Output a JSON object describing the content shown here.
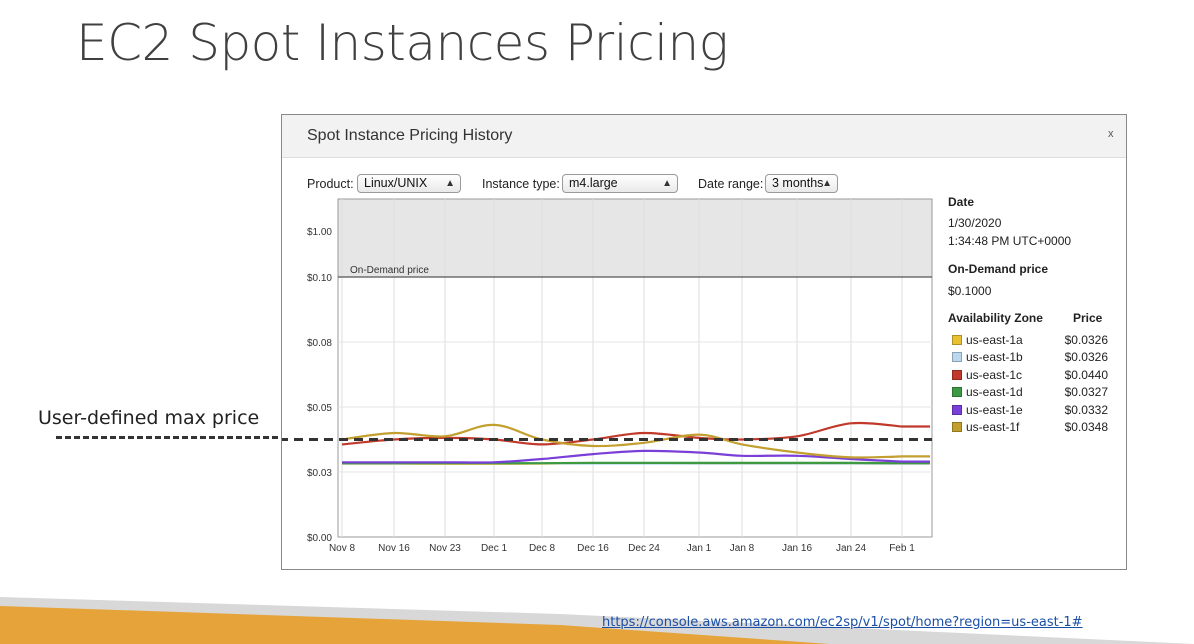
{
  "slide": {
    "title": "EC2 Spot Instances Pricing",
    "annotation": "User-defined max price",
    "link": "https://console.aws.amazon.com/ec2sp/v1/spot/home?region=us-east-1#"
  },
  "modal": {
    "title": "Spot Instance Pricing History",
    "close": "x",
    "product_label": "Product:",
    "product_value": "Linux/UNIX",
    "instance_label": "Instance type:",
    "instance_value": "m4.large",
    "range_label": "Date range:",
    "range_value": "3 months"
  },
  "info": {
    "date_heading": "Date",
    "date_value": "1/30/2020",
    "time_value": "1:34:48 PM UTC+0000",
    "ondemand_heading": "On-Demand price",
    "ondemand_value": "$0.1000",
    "az_heading": "Availability Zone",
    "price_heading": "Price"
  },
  "colors": {
    "us-east-1a": "#e8c032",
    "us-east-1b": "#b9d8ef",
    "us-east-1c": "#c0392b",
    "us-east-1d": "#3e9a42",
    "us-east-1e": "#7a3fd8",
    "us-east-1f": "#c29f2e",
    "max_price_line": "#333333"
  },
  "chart_data": {
    "type": "line",
    "x_labels": [
      "Nov 8",
      "Nov 16",
      "Nov 23",
      "Dec 1",
      "Dec 8",
      "Dec 16",
      "Dec 24",
      "Jan 1",
      "Jan 8",
      "Jan 16",
      "Jan 24",
      "Feb 1"
    ],
    "y_ticks": [
      "$1.00",
      "$0.10",
      "$0.08",
      "$0.05",
      "$0.03",
      "$0.00"
    ],
    "on_demand_label": "On-Demand price",
    "on_demand_price": 0.1,
    "max_price": 0.04,
    "series": [
      {
        "name": "us-east-1a",
        "price": "$0.0326",
        "values": [
          0.0325,
          0.0325,
          0.0325,
          0.0325,
          0.0326,
          0.0327,
          0.0327,
          0.0326,
          0.0326,
          0.0326,
          0.0326,
          0.0326
        ]
      },
      {
        "name": "us-east-1b",
        "price": "$0.0326",
        "values": [
          0.0326,
          0.0326,
          0.0327,
          0.0327,
          0.0327,
          0.0326,
          0.0326,
          0.0326,
          0.0326,
          0.0326,
          0.0326,
          0.0326
        ]
      },
      {
        "name": "us-east-1c",
        "price": "$0.0440",
        "values": [
          0.0385,
          0.04,
          0.0405,
          0.04,
          0.0385,
          0.04,
          0.042,
          0.0405,
          0.04,
          0.041,
          0.045,
          0.044
        ]
      },
      {
        "name": "us-east-1d",
        "price": "$0.0327",
        "values": [
          0.0327,
          0.0327,
          0.0327,
          0.0327,
          0.0327,
          0.0328,
          0.0328,
          0.0328,
          0.0328,
          0.0328,
          0.0328,
          0.0327
        ]
      },
      {
        "name": "us-east-1e",
        "price": "$0.0332",
        "values": [
          0.033,
          0.033,
          0.033,
          0.033,
          0.034,
          0.0355,
          0.0365,
          0.036,
          0.035,
          0.035,
          0.034,
          0.0332
        ]
      },
      {
        "name": "us-east-1f",
        "price": "$0.0348",
        "values": [
          0.04,
          0.042,
          0.041,
          0.0445,
          0.04,
          0.038,
          0.039,
          0.0415,
          0.0385,
          0.036,
          0.0345,
          0.0348
        ]
      }
    ]
  }
}
